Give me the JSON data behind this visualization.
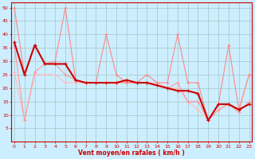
{
  "xlabel": "Vent moyen/en rafales ( km/h )",
  "bg_color": "#cceeff",
  "grid_color": "#aacccc",
  "x_values": [
    0,
    1,
    2,
    3,
    4,
    5,
    6,
    7,
    8,
    9,
    10,
    11,
    12,
    13,
    14,
    15,
    16,
    17,
    18,
    19,
    20,
    21,
    22,
    23
  ],
  "series": [
    {
      "name": "dark_red_linear",
      "y": [
        37,
        25,
        36,
        29,
        29,
        29,
        23,
        22,
        22,
        22,
        22,
        23,
        22,
        22,
        21,
        20,
        19,
        19,
        18,
        8,
        14,
        14,
        12,
        14
      ],
      "color": "#cc0000",
      "lw": 1.5,
      "marker": "+",
      "ms": 3
    },
    {
      "name": "light_pink_peaks",
      "y": [
        50,
        25,
        36,
        29,
        30,
        50,
        23,
        22,
        22,
        40,
        25,
        22,
        22,
        25,
        22,
        22,
        40,
        22,
        22,
        8,
        14,
        36,
        12,
        25
      ],
      "color": "#ff8888",
      "lw": 0.8,
      "marker": "+",
      "ms": 2.5
    },
    {
      "name": "medium_pink",
      "y": [
        36,
        8,
        26,
        29,
        29,
        25,
        23,
        22,
        22,
        22,
        22,
        22,
        22,
        22,
        21,
        20,
        22,
        15,
        15,
        8,
        12,
        14,
        11,
        15
      ],
      "color": "#ff9999",
      "lw": 0.8,
      "marker": "+",
      "ms": 2.5
    },
    {
      "name": "pale_pink",
      "y": [
        26,
        8,
        25,
        25,
        25,
        22,
        22,
        22,
        22,
        22,
        22,
        22,
        22,
        22,
        22,
        20,
        20,
        15,
        12,
        8,
        12,
        14,
        11,
        25
      ],
      "color": "#ffbbbb",
      "lw": 0.8,
      "marker": "+",
      "ms": 2.5
    }
  ],
  "ylim": [
    0,
    52
  ],
  "yticks": [
    5,
    10,
    15,
    20,
    25,
    30,
    35,
    40,
    45,
    50
  ],
  "xticks": [
    0,
    1,
    2,
    3,
    4,
    5,
    6,
    7,
    8,
    9,
    10,
    11,
    12,
    13,
    14,
    15,
    16,
    17,
    18,
    19,
    20,
    21,
    22,
    23
  ],
  "tick_fontsize": 4.5,
  "label_fontsize": 5.5,
  "axis_color": "#cc0000",
  "tick_color": "#cc0000",
  "label_color": "#cc0000"
}
